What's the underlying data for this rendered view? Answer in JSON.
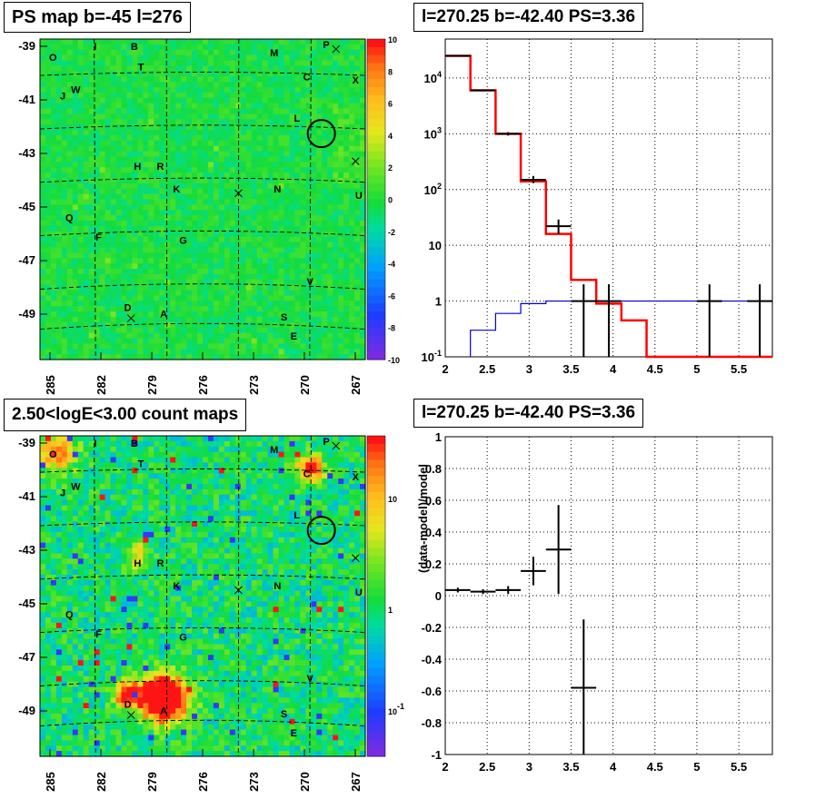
{
  "titles": {
    "tl": "PS map b=-45 l=276",
    "tr": "l=270.25 b=-42.40 PS=3.36",
    "bl": "2.50<logE<3.00 count maps",
    "br": "l=270.25 b=-42.40 PS=3.36"
  },
  "map_axes": {
    "x_ticks": [
      "285",
      "282",
      "279",
      "276",
      "273",
      "270",
      "267"
    ],
    "y_ticks": [
      "-39",
      "-41",
      "-43",
      "-45",
      "-47",
      "-49"
    ]
  },
  "map_labels": [
    "O",
    "I",
    "B",
    "T",
    "M",
    "P",
    "C",
    "X",
    "J",
    "W",
    "L",
    "H",
    "R",
    "K",
    "N",
    "U",
    "Q",
    "F",
    "G",
    "V",
    "D",
    "A",
    "S",
    "E"
  ],
  "top_colorbar_ticks": [
    "10",
    "8",
    "6",
    "4",
    "2",
    "0",
    "-2",
    "-4",
    "-6",
    "-8",
    "-10"
  ],
  "bottom_colorbar_ticks": [
    "10",
    "1",
    "10^-1"
  ],
  "colors": {
    "data": "#000000",
    "model": "#ff0000",
    "background": "#0000cc"
  },
  "chart_data": [
    {
      "type": "heatmap",
      "title": "PS map b=-45 l=276",
      "xlim": [
        285,
        267
      ],
      "ylim": [
        -50.5,
        -38.5
      ],
      "zlim": [
        -10,
        10
      ],
      "description_values": "PS significance map, near 0 everywhere with a circled position at l=270.25 b=-42.40"
    },
    {
      "type": "line",
      "title": "l=270.25 b=-42.40 PS=3.36",
      "ylog": true,
      "xlim": [
        2,
        6
      ],
      "ylim": [
        0.1,
        50000
      ],
      "x_ticks": [
        "2",
        "2.5",
        "3",
        "3.5",
        "4",
        "4.5",
        "5",
        "5.5"
      ],
      "y_ticks": [
        "10^4",
        "10^3",
        "10^2",
        "10",
        "1",
        "10^-1"
      ],
      "series": [
        {
          "edges": [
            2.0,
            2.3,
            2.6,
            2.9,
            3.2,
            3.5,
            3.8,
            4.1,
            4.4,
            4.7,
            5.0,
            5.3,
            5.6,
            5.9
          ],
          "values": [
            25000,
            6000,
            1000,
            140,
            16,
            2.4,
            0.9,
            0.45,
            0.1,
            0.1,
            0.1,
            0.1,
            0.1
          ]
        },
        {
          "edges": [
            2.3,
            2.6,
            2.9,
            3.2,
            3.5,
            3.8,
            4.1,
            4.4,
            4.7,
            5.0,
            5.3,
            5.6,
            5.9
          ],
          "values": [
            0.3,
            0.6,
            0.9,
            1.0,
            1.0,
            1.0,
            1.0,
            1.0,
            1.0,
            1.0,
            1.0,
            1.0
          ]
        },
        {
          "points": [
            {
              "x": 2.15,
              "y": 25000,
              "xerr": 0.15,
              "ylo": 24500,
              "yhi": 25500
            },
            {
              "x": 2.45,
              "y": 6000,
              "xerr": 0.15,
              "ylo": 5800,
              "yhi": 6200
            },
            {
              "x": 2.75,
              "y": 1000,
              "xerr": 0.15,
              "ylo": 930,
              "yhi": 1070
            },
            {
              "x": 3.05,
              "y": 150,
              "xerr": 0.15,
              "ylo": 130,
              "yhi": 175
            },
            {
              "x": 3.35,
              "y": 22,
              "xerr": 0.15,
              "ylo": 16,
              "yhi": 29
            },
            {
              "x": 3.65,
              "y": 1,
              "xerr": 0.15,
              "ylo": 0.1,
              "yhi": 2
            },
            {
              "x": 3.95,
              "y": 1,
              "xerr": 0.15,
              "ylo": 0.1,
              "yhi": 2
            },
            {
              "x": 5.15,
              "y": 1,
              "xerr": 0.15,
              "ylo": 0.1,
              "yhi": 2
            },
            {
              "x": 5.75,
              "y": 1,
              "xerr": 0.15,
              "ylo": 0.1,
              "yhi": 2
            }
          ]
        }
      ]
    },
    {
      "type": "heatmap",
      "title": "2.50<logE<3.00 count maps",
      "xlim": [
        285,
        267
      ],
      "ylim": [
        -50.5,
        -38.5
      ],
      "zlog": true
    },
    {
      "type": "scatter",
      "title": "l=270.25 b=-42.40 PS=3.36",
      "ylabel": "(data-model)/model",
      "xlim": [
        2,
        5.9
      ],
      "ylim": [
        -1,
        1
      ],
      "x_ticks": [
        "2",
        "2.5",
        "3",
        "3.5",
        "4",
        "4.5",
        "5",
        "5.5"
      ],
      "y_ticks": [
        "1",
        "0.8",
        "0.6",
        "0.4",
        "0.2",
        "0",
        "-0.2",
        "-0.4",
        "-0.6",
        "-0.8",
        "-1"
      ],
      "points": [
        {
          "x": 2.15,
          "y": 0.035,
          "xerr": 0.15,
          "yerr": 0.015
        },
        {
          "x": 2.45,
          "y": 0.025,
          "xerr": 0.15,
          "yerr": 0.015
        },
        {
          "x": 2.75,
          "y": 0.035,
          "xerr": 0.15,
          "yerr": 0.025
        },
        {
          "x": 3.05,
          "y": 0.155,
          "xerr": 0.15,
          "yerr": 0.09
        },
        {
          "x": 3.35,
          "y": 0.29,
          "xerr": 0.15,
          "yerr": 0.28
        },
        {
          "x": 3.65,
          "y": -0.58,
          "xerr": 0.15,
          "yerr": 0.43
        }
      ]
    }
  ]
}
